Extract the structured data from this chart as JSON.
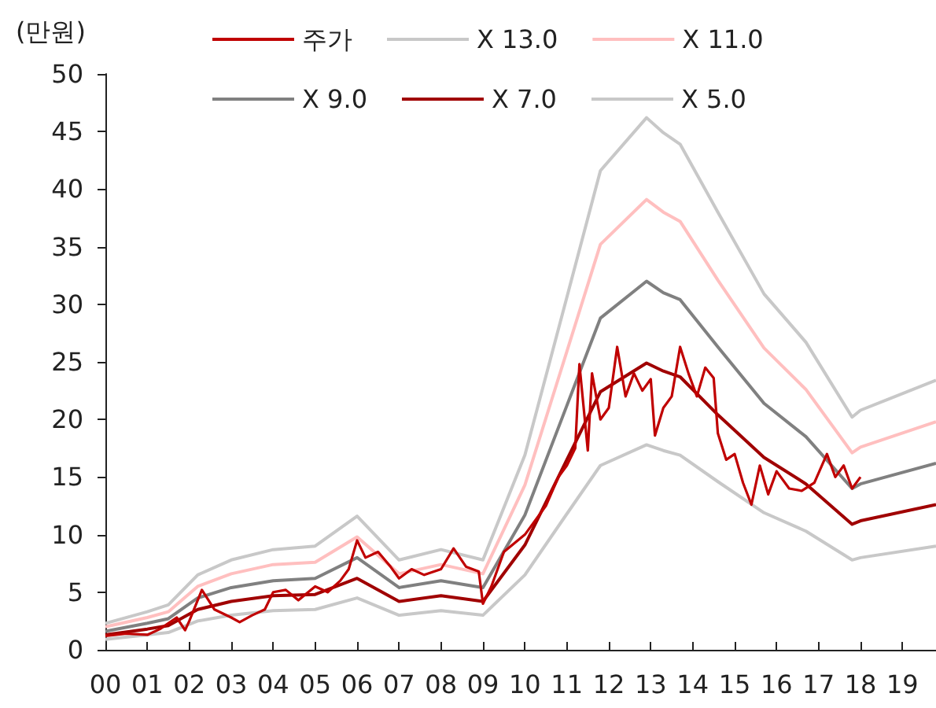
{
  "chart_data": {
    "type": "line",
    "ylabel": "(만원)",
    "xlim": [
      0,
      19.8
    ],
    "ylim": [
      0,
      50
    ],
    "yticks": [
      0,
      5,
      10,
      15,
      20,
      25,
      30,
      35,
      40,
      45,
      50
    ],
    "xticks": [
      {
        "value": 0,
        "label": "00"
      },
      {
        "value": 1,
        "label": "01"
      },
      {
        "value": 2,
        "label": "02"
      },
      {
        "value": 3,
        "label": "03"
      },
      {
        "value": 4,
        "label": "04"
      },
      {
        "value": 5,
        "label": "05"
      },
      {
        "value": 6,
        "label": "06"
      },
      {
        "value": 7,
        "label": "07"
      },
      {
        "value": 8,
        "label": "08"
      },
      {
        "value": 9,
        "label": "09"
      },
      {
        "value": 10,
        "label": "10"
      },
      {
        "value": 11,
        "label": "11"
      },
      {
        "value": 12,
        "label": "12"
      },
      {
        "value": 13,
        "label": "13"
      },
      {
        "value": 14,
        "label": "14"
      },
      {
        "value": 15,
        "label": "15"
      },
      {
        "value": 16,
        "label": "16"
      },
      {
        "value": 17,
        "label": "17"
      },
      {
        "value": 18,
        "label": "18"
      },
      {
        "value": 19,
        "label": "19"
      }
    ],
    "grid": false,
    "legend": "top",
    "marker": "none",
    "line_style": "solid",
    "series": [
      {
        "name": "주가",
        "color": "#c00000",
        "x": [
          0,
          0.5,
          1,
          1.3,
          1.7,
          1.9,
          2,
          2.3,
          2.6,
          3,
          3.2,
          3.5,
          3.8,
          4,
          4.3,
          4.6,
          5,
          5.3,
          5.6,
          5.8,
          6,
          6.2,
          6.5,
          6.8,
          7,
          7.3,
          7.6,
          8,
          8.3,
          8.6,
          8.9,
          9,
          9.2,
          9.5,
          10,
          10.5,
          10.8,
          11,
          11.2,
          11.3,
          11.5,
          11.6,
          11.8,
          12,
          12.2,
          12.4,
          12.6,
          12.8,
          13,
          13.1,
          13.3,
          13.5,
          13.7,
          13.9,
          14.1,
          14.3,
          14.5,
          14.6,
          14.8,
          15,
          15.2,
          15.4,
          15.6,
          15.8,
          16,
          16.3,
          16.6,
          16.9,
          17.2,
          17.4,
          17.6,
          17.8,
          18
        ],
        "values": [
          1.2,
          1.4,
          1.3,
          1.8,
          2.8,
          1.7,
          2.5,
          5.2,
          3.5,
          2.8,
          2.4,
          3,
          3.5,
          5,
          5.2,
          4.3,
          5.5,
          5,
          6,
          7,
          9.5,
          8,
          8.5,
          7.2,
          6.2,
          7,
          6.5,
          7,
          8.8,
          7.2,
          6.8,
          4,
          5.5,
          8.5,
          10,
          12.5,
          15,
          16,
          17.5,
          24.8,
          17.3,
          24,
          20,
          21,
          26.3,
          22,
          24,
          22.5,
          23.5,
          18.6,
          21,
          22,
          26.3,
          24,
          22,
          24.5,
          23.6,
          18.8,
          16.5,
          17,
          14.5,
          12.6,
          16,
          13.5,
          15.5,
          14,
          13.8,
          14.5,
          17,
          15,
          16,
          14,
          15
        ]
      },
      {
        "name": "X 13.0",
        "color": "#c8c8c8",
        "x": [
          0,
          1,
          1.5,
          2.2,
          3,
          4,
          5,
          6,
          7,
          8,
          9,
          10,
          11,
          11.8,
          12.9,
          13.3,
          13.7,
          14.6,
          15.7,
          16.7,
          17.8,
          18,
          19.8
        ],
        "values": [
          2.3,
          3.3,
          3.9,
          6.5,
          7.8,
          8.7,
          9,
          11.6,
          7.8,
          8.7,
          7.8,
          16.9,
          30.6,
          41.6,
          46.2,
          44.9,
          43.9,
          38,
          30.9,
          26.7,
          20.2,
          20.8,
          23.4
        ]
      },
      {
        "name": "X 11.0",
        "color": "#ffbfbf",
        "x": [
          0,
          1,
          1.5,
          2.2,
          3,
          4,
          5,
          6,
          7,
          8,
          9,
          10,
          11,
          11.8,
          12.9,
          13.3,
          13.7,
          14.6,
          15.7,
          16.7,
          17.8,
          18,
          19.8
        ],
        "values": [
          2,
          2.8,
          3.3,
          5.5,
          6.6,
          7.4,
          7.6,
          9.8,
          6.6,
          7.4,
          6.6,
          14.3,
          25.9,
          35.2,
          39.1,
          38,
          37.2,
          32.1,
          26.2,
          22.6,
          17.1,
          17.6,
          19.8
        ]
      },
      {
        "name": "X 9.0",
        "color": "#808080",
        "x": [
          0,
          1,
          1.5,
          2.2,
          3,
          4,
          5,
          6,
          7,
          8,
          9,
          10,
          11,
          11.8,
          12.9,
          13.3,
          13.7,
          14.6,
          15.7,
          16.7,
          17.8,
          18,
          19.8
        ],
        "values": [
          1.6,
          2.3,
          2.7,
          4.5,
          5.4,
          6,
          6.2,
          8,
          5.4,
          6,
          5.4,
          11.7,
          21.2,
          28.8,
          32,
          31,
          30.4,
          26.3,
          21.4,
          18.5,
          14,
          14.4,
          16.2
        ]
      },
      {
        "name": "X 7.0",
        "color": "#a00000",
        "x": [
          0,
          1,
          1.5,
          2.2,
          3,
          4,
          5,
          6,
          7,
          8,
          9,
          10,
          11,
          11.8,
          12.9,
          13.3,
          13.7,
          14.6,
          15.7,
          16.7,
          17.8,
          18,
          19.8
        ],
        "values": [
          1.3,
          1.8,
          2.1,
          3.5,
          4.2,
          4.7,
          4.8,
          6.2,
          4.2,
          4.7,
          4.2,
          9.1,
          16.5,
          22.4,
          24.9,
          24.2,
          23.7,
          20.4,
          16.7,
          14.4,
          10.9,
          11.2,
          12.6
        ]
      },
      {
        "name": "X 5.0",
        "color": "#c8c8c8",
        "x": [
          0,
          1,
          1.5,
          2.2,
          3,
          4,
          5,
          6,
          7,
          8,
          9,
          10,
          11,
          11.8,
          12.9,
          13.3,
          13.7,
          14.6,
          15.7,
          16.7,
          17.8,
          18,
          19.8
        ],
        "values": [
          0.9,
          1.3,
          1.5,
          2.5,
          3,
          3.4,
          3.5,
          4.5,
          3,
          3.4,
          3,
          6.5,
          11.8,
          16,
          17.8,
          17.3,
          16.9,
          14.6,
          11.9,
          10.3,
          7.8,
          8,
          9
        ]
      }
    ]
  }
}
